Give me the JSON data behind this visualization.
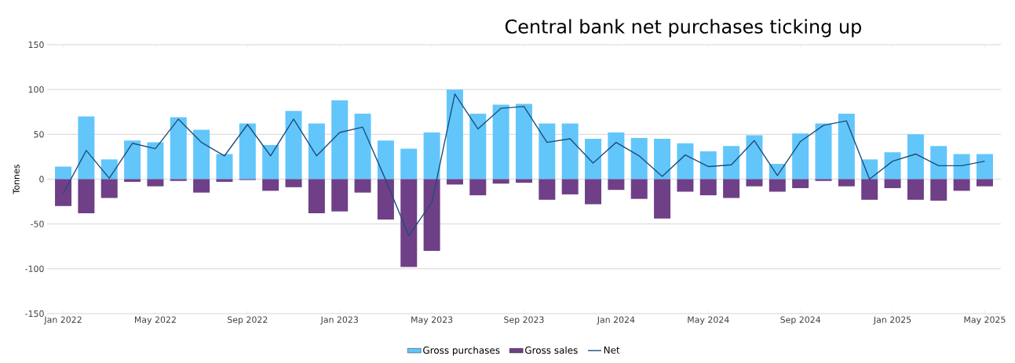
{
  "chart_data": {
    "type": "bar",
    "title": "Central bank net purchases ticking  up",
    "ylabel": "Tonnes",
    "categories": [
      "Jan 2022",
      null,
      null,
      null,
      "May 2022",
      null,
      null,
      null,
      "Sep 2022",
      null,
      null,
      null,
      "Jan 2023",
      null,
      null,
      null,
      "May 2023",
      null,
      null,
      null,
      "Sep 2023",
      null,
      null,
      null,
      "Jan 2024",
      null,
      null,
      null,
      "May 2024",
      null,
      null,
      null,
      "Sep 2024",
      null,
      null,
      null,
      "Jan 2025",
      null,
      null,
      null,
      "May 2025"
    ],
    "series": [
      {
        "name": "Gross purchases",
        "color": "#62c6fb",
        "values": [
          14,
          70,
          22,
          43,
          41,
          69,
          55,
          28,
          62,
          38,
          76,
          62,
          88,
          73,
          43,
          34,
          52,
          100,
          73,
          83,
          84,
          62,
          62,
          45,
          52,
          46,
          45,
          40,
          31,
          37,
          49,
          17,
          51,
          62,
          73,
          22,
          30,
          50,
          37,
          28,
          28
        ]
      },
      {
        "name": "Gross sales",
        "color": "#6f3f87",
        "values": [
          -30,
          -38,
          -21,
          -3,
          -8,
          -2,
          -15,
          -3,
          -1,
          -13,
          -9,
          -38,
          -36,
          -15,
          -45,
          -98,
          -80,
          -6,
          -18,
          -5,
          -4,
          -23,
          -17,
          -28,
          -12,
          -22,
          -44,
          -14,
          -18,
          -21,
          -8,
          -14,
          -10,
          -2,
          -8,
          -23,
          -10,
          -23,
          -24,
          -13,
          -8
        ]
      },
      {
        "name": "Net",
        "type": "line",
        "color": "#1f4e79",
        "values": [
          -16,
          32,
          1,
          40,
          34,
          67,
          41,
          26,
          61,
          26,
          67,
          26,
          52,
          58,
          -1,
          -63,
          -26,
          95,
          56,
          79,
          81,
          41,
          45,
          18,
          41,
          26,
          3,
          27,
          14,
          16,
          43,
          4,
          42,
          60,
          65,
          0,
          20,
          28,
          15,
          15,
          20
        ]
      }
    ],
    "ylim": [
      -150,
      150
    ],
    "yticks": [
      -150,
      -100,
      -50,
      0,
      50,
      100,
      150
    ],
    "grid": "y",
    "stacked": true,
    "legend": "bottom",
    "marker": "none"
  }
}
